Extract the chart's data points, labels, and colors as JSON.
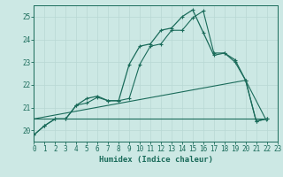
{
  "xlabel": "Humidex (Indice chaleur)",
  "xlim": [
    0,
    23
  ],
  "ylim": [
    19.5,
    25.5
  ],
  "xticks": [
    0,
    1,
    2,
    3,
    4,
    5,
    6,
    7,
    8,
    9,
    10,
    11,
    12,
    13,
    14,
    15,
    16,
    17,
    18,
    19,
    20,
    21,
    22,
    23
  ],
  "yticks": [
    20,
    21,
    22,
    23,
    24,
    25
  ],
  "bg_color": "#cce8e4",
  "line_color": "#1a6b5a",
  "grid_color": "#b8d8d4",
  "curve1_x": [
    0,
    1,
    2,
    3,
    4,
    5,
    6,
    7,
    8,
    9,
    10,
    11,
    12,
    13,
    14,
    15,
    16,
    17,
    18,
    19,
    20,
    21,
    22
  ],
  "curve1_y": [
    19.8,
    20.2,
    20.5,
    20.5,
    21.1,
    21.4,
    21.5,
    21.3,
    21.3,
    22.9,
    23.7,
    23.8,
    24.4,
    24.5,
    25.0,
    25.3,
    24.3,
    23.3,
    23.4,
    23.1,
    22.2,
    20.4,
    20.5
  ],
  "curve2_x": [
    0,
    1,
    2,
    3,
    4,
    5,
    6,
    7,
    8,
    9,
    10,
    11,
    12,
    13,
    14,
    15,
    16,
    17,
    18,
    19,
    20,
    21,
    22
  ],
  "curve2_y": [
    19.8,
    20.2,
    20.5,
    20.5,
    21.1,
    21.2,
    21.45,
    21.3,
    21.3,
    21.4,
    22.9,
    23.7,
    23.8,
    24.4,
    24.4,
    24.95,
    25.25,
    23.4,
    23.4,
    23.0,
    22.2,
    20.4,
    20.5
  ],
  "curve3_x": [
    0,
    20,
    22
  ],
  "curve3_y": [
    20.5,
    22.2,
    20.4
  ],
  "curve4_x": [
    0,
    20,
    22
  ],
  "curve4_y": [
    20.5,
    20.5,
    20.5
  ]
}
